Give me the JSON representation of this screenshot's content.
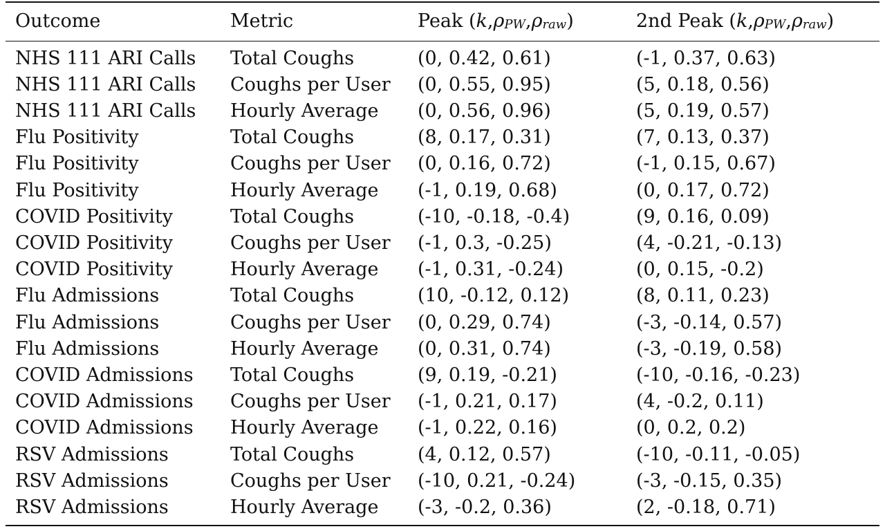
{
  "table": {
    "headers": {
      "outcome": "Outcome",
      "metric": "Metric",
      "peak_prefix": "Peak (",
      "peak_k": "k",
      "peak_rho": "ρ",
      "peak_sub_pw": "PW",
      "peak_sub_raw": "raw",
      "second_prefix": "2nd Peak (",
      "second_k": "k",
      "second_rho": "ρ",
      "second_sub_pw": "PW",
      "second_sub_raw": "raw",
      "sep": ", ",
      "close": ")"
    },
    "rows": [
      {
        "outcome": "NHS 111 ARI Calls",
        "metric": "Total Coughs",
        "peak": "(0, 0.42, 0.61)",
        "second_peak": "(-1, 0.37, 0.63)"
      },
      {
        "outcome": "NHS 111 ARI Calls",
        "metric": "Coughs per User",
        "peak": "(0, 0.55, 0.95)",
        "second_peak": "(5, 0.18, 0.56)"
      },
      {
        "outcome": "NHS 111 ARI Calls",
        "metric": "Hourly Average",
        "peak": "(0, 0.56, 0.96)",
        "second_peak": "(5, 0.19, 0.57)"
      },
      {
        "outcome": "Flu Positivity",
        "metric": "Total Coughs",
        "peak": "(8, 0.17, 0.31)",
        "second_peak": "(7, 0.13, 0.37)"
      },
      {
        "outcome": "Flu Positivity",
        "metric": "Coughs per User",
        "peak": "(0, 0.16, 0.72)",
        "second_peak": "(-1, 0.15, 0.67)"
      },
      {
        "outcome": "Flu Positivity",
        "metric": "Hourly Average",
        "peak": "(-1, 0.19, 0.68)",
        "second_peak": "(0, 0.17, 0.72)"
      },
      {
        "outcome": "COVID Positivity",
        "metric": "Total Coughs",
        "peak": "(-10, -0.18, -0.4)",
        "second_peak": "(9, 0.16, 0.09)"
      },
      {
        "outcome": "COVID Positivity",
        "metric": "Coughs per User",
        "peak": "(-1, 0.3, -0.25)",
        "second_peak": "(4, -0.21, -0.13)"
      },
      {
        "outcome": "COVID Positivity",
        "metric": "Hourly Average",
        "peak": "(-1, 0.31, -0.24)",
        "second_peak": "(0, 0.15, -0.2)"
      },
      {
        "outcome": "Flu Admissions",
        "metric": "Total Coughs",
        "peak": "(10, -0.12, 0.12)",
        "second_peak": "(8, 0.11, 0.23)"
      },
      {
        "outcome": "Flu Admissions",
        "metric": "Coughs per User",
        "peak": "(0, 0.29, 0.74)",
        "second_peak": "(-3, -0.14, 0.57)"
      },
      {
        "outcome": "Flu Admissions",
        "metric": "Hourly Average",
        "peak": "(0, 0.31, 0.74)",
        "second_peak": "(-3, -0.19, 0.58)"
      },
      {
        "outcome": "COVID Admissions",
        "metric": "Total Coughs",
        "peak": "(9, 0.19, -0.21)",
        "second_peak": "(-10, -0.16, -0.23)"
      },
      {
        "outcome": "COVID Admissions",
        "metric": "Coughs per User",
        "peak": "(-1, 0.21, 0.17)",
        "second_peak": "(4, -0.2, 0.11)"
      },
      {
        "outcome": "COVID Admissions",
        "metric": "Hourly Average",
        "peak": "(-1, 0.22, 0.16)",
        "second_peak": "(0, 0.2, 0.2)"
      },
      {
        "outcome": "RSV Admissions",
        "metric": "Total Coughs",
        "peak": "(4, 0.12, 0.57)",
        "second_peak": "(-10, -0.11, -0.05)"
      },
      {
        "outcome": "RSV Admissions",
        "metric": "Coughs per User",
        "peak": "(-10, 0.21, -0.24)",
        "second_peak": "(-3, -0.15, 0.35)"
      },
      {
        "outcome": "RSV Admissions",
        "metric": "Hourly Average",
        "peak": "(-3, -0.2, 0.36)",
        "second_peak": "(2, -0.18, 0.71)"
      }
    ]
  }
}
